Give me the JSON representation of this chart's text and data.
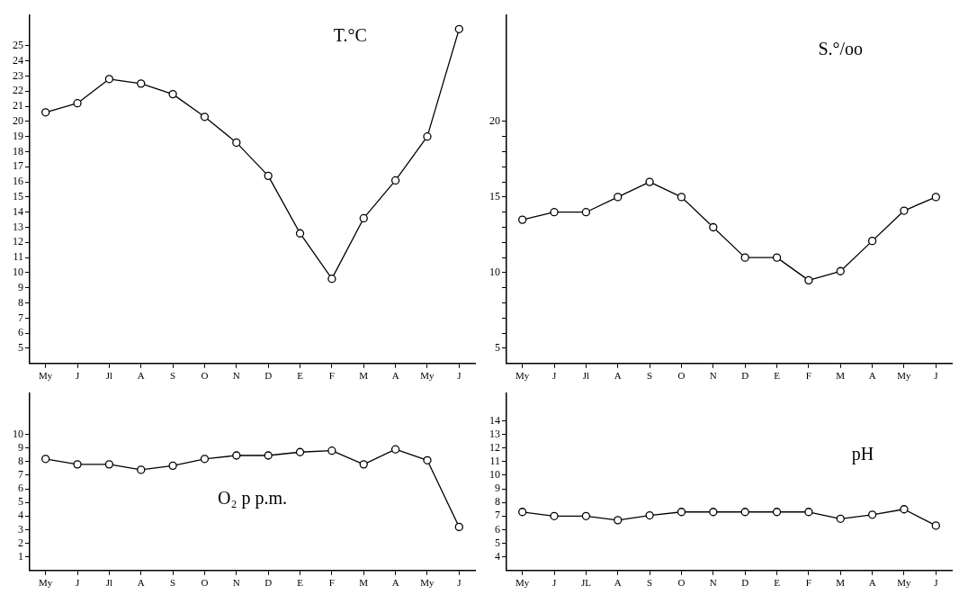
{
  "chart_data": [
    {
      "type": "line",
      "title": "T.°C",
      "categories": [
        "My",
        "J",
        "Jl",
        "A",
        "S",
        "O",
        "N",
        "D",
        "E",
        "F",
        "M",
        "A",
        "My",
        "J"
      ],
      "color": "#000000",
      "marker": "circle",
      "line_style": "solid",
      "grid": false,
      "values": [
        20.6,
        21.2,
        22.8,
        22.5,
        21.8,
        20.3,
        18.6,
        16.4,
        12.6,
        9.6,
        13.6,
        16.1,
        19.0,
        26.1
      ],
      "ylim": [
        4,
        27
      ],
      "yticks": [
        5,
        6,
        7,
        8,
        9,
        10,
        11,
        12,
        13,
        14,
        15,
        16,
        17,
        18,
        19,
        20,
        21,
        22,
        23,
        24,
        25
      ]
    },
    {
      "type": "line",
      "title": "S.°/oo",
      "categories": [
        "My",
        "J",
        "Jl",
        "A",
        "S",
        "O",
        "N",
        "D",
        "E",
        "F",
        "M",
        "A",
        "My",
        "J"
      ],
      "color": "#000000",
      "marker": "circle",
      "line_style": "solid",
      "grid": false,
      "values": [
        13.5,
        14.0,
        14.0,
        15.0,
        16.0,
        15.0,
        13.0,
        11.0,
        11.0,
        9.5,
        10.1,
        12.1,
        14.1,
        15.0
      ],
      "ylim": [
        4,
        27
      ],
      "yticks": [
        5,
        {
          "value": 6,
          "label": null
        },
        {
          "value": 7,
          "label": null
        },
        {
          "value": 8,
          "label": null
        },
        {
          "value": 9,
          "label": null
        },
        10,
        {
          "value": 11,
          "label": null
        },
        {
          "value": 12,
          "label": null
        },
        {
          "value": 13,
          "label": null
        },
        {
          "value": 14,
          "label": null
        },
        15,
        {
          "value": 16,
          "label": null
        },
        {
          "value": 17,
          "label": null
        },
        {
          "value": 18,
          "label": null
        },
        {
          "value": 19,
          "label": null
        },
        20
      ]
    },
    {
      "type": "line",
      "title": "O₂ p p.m.",
      "categories": [
        "My",
        "J",
        "Jl",
        "A",
        "S",
        "O",
        "N",
        "D",
        "E",
        "F",
        "M",
        "A",
        "My",
        "J"
      ],
      "color": "#000000",
      "marker": "circle",
      "line_style": "solid",
      "grid": false,
      "values": [
        8.2,
        7.8,
        7.8,
        7.4,
        7.7,
        8.2,
        8.45,
        8.45,
        8.7,
        8.8,
        7.8,
        8.9,
        8.1,
        3.2
      ],
      "ylim": [
        0,
        13
      ],
      "yticks": [
        1,
        2,
        3,
        4,
        5,
        6,
        7,
        8,
        9,
        10
      ]
    },
    {
      "type": "line",
      "title": "pH",
      "categories": [
        "My",
        "J",
        "JL",
        "A",
        "S",
        "O",
        "N",
        "D",
        "E",
        "F",
        "M",
        "A",
        "My",
        "J"
      ],
      "color": "#000000",
      "marker": "circle",
      "line_style": "solid",
      "grid": false,
      "values": [
        7.3,
        7.0,
        7.0,
        6.7,
        7.05,
        7.3,
        7.3,
        7.3,
        7.3,
        7.3,
        6.8,
        7.1,
        7.5,
        6.3
      ],
      "ylim": [
        3,
        16
      ],
      "yticks": [
        4,
        5,
        6,
        7,
        8,
        9,
        10,
        11,
        12,
        13,
        14
      ]
    }
  ]
}
